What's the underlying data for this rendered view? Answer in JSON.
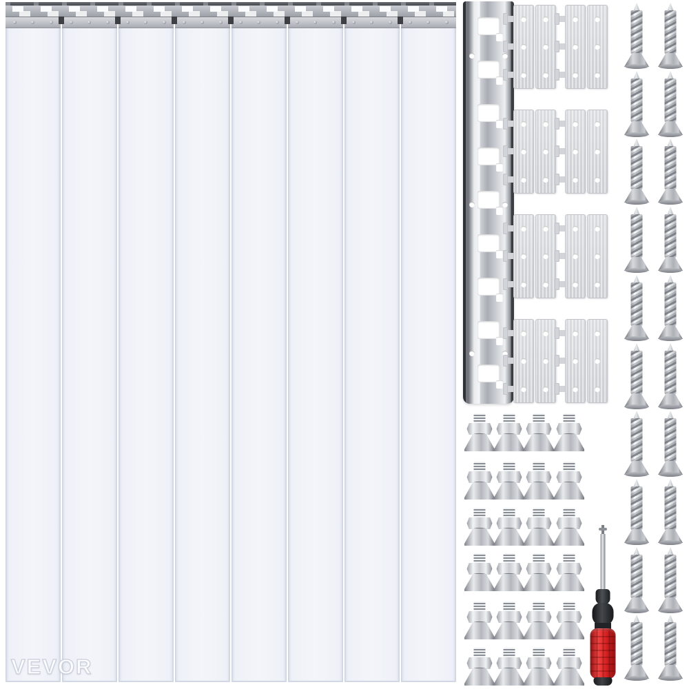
{
  "brand": {
    "watermark_text": "VEVOR"
  },
  "colors": {
    "background": "#ffffff",
    "strip_fill": "#eef1f7",
    "strip_edge": "#c9cfdd",
    "metal_light": "#eceef0",
    "metal_mid": "#b9bdc3",
    "metal_dark": "#4a4d52",
    "screwdriver_red": "#d62222",
    "screwdriver_black": "#2b2d30"
  },
  "components": {
    "strip_curtain": {
      "label": "clear-pvc-strip-curtain",
      "strip_count": 8,
      "screws_per_clamp": 3
    },
    "top_rail": {
      "label": "slotted-hanging-rail"
    },
    "vertical_rail": {
      "label": "slotted-mounting-rail",
      "slot_count": 9,
      "screw_hole_pairs": 3
    },
    "hinge_plates": {
      "label": "strip-hanger-plates",
      "group_count": 4,
      "pairs_per_group": 2,
      "plates_per_pair": 2,
      "holes_per_plate": 3,
      "tabs_per_left_plate": 3,
      "total_plates": 16
    },
    "bolts": {
      "label": "hex-nut-bolts",
      "rows": 6,
      "columns": 4,
      "total": 24
    },
    "screws": {
      "label": "self-tapping-screws",
      "rows": 10,
      "columns": 2,
      "total": 20
    },
    "screwdriver": {
      "label": "phillips-screwdriver",
      "handle_color_name": "red"
    }
  }
}
